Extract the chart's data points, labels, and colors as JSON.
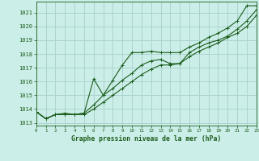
{
  "title": "Graphe pression niveau de la mer (hPa)",
  "background_color": "#cceee8",
  "grid_color": "#aad4ce",
  "line_color": "#1a5c1a",
  "xmin": 0,
  "xmax": 23,
  "ymin": 1012.8,
  "ymax": 1021.8,
  "yticks": [
    1013,
    1014,
    1015,
    1016,
    1017,
    1018,
    1019,
    1020,
    1021
  ],
  "xticks": [
    0,
    1,
    2,
    3,
    4,
    5,
    6,
    7,
    8,
    9,
    10,
    11,
    12,
    13,
    14,
    15,
    16,
    17,
    18,
    19,
    20,
    21,
    22,
    23
  ],
  "series1": [
    1013.8,
    1013.3,
    1013.6,
    1013.6,
    1013.6,
    1013.7,
    1016.2,
    1015.0,
    1016.1,
    1017.2,
    1018.1,
    1018.1,
    1018.2,
    1018.1,
    1018.1,
    1018.1,
    1018.5,
    1018.8,
    1019.2,
    1019.5,
    1019.9,
    1020.4,
    1021.5,
    1021.5
  ],
  "series2": [
    1013.8,
    1013.3,
    1013.6,
    1013.7,
    1013.6,
    1013.7,
    1014.3,
    1015.0,
    1015.5,
    1016.1,
    1016.6,
    1017.2,
    1017.5,
    1017.6,
    1017.3,
    1017.3,
    1018.1,
    1018.5,
    1018.8,
    1019.0,
    1019.3,
    1019.8,
    1020.4,
    1021.2
  ],
  "series3": [
    1013.8,
    1013.3,
    1013.6,
    1013.6,
    1013.6,
    1013.6,
    1014.0,
    1014.5,
    1015.0,
    1015.5,
    1016.0,
    1016.5,
    1016.9,
    1017.2,
    1017.2,
    1017.3,
    1017.8,
    1018.2,
    1018.5,
    1018.8,
    1019.2,
    1019.5,
    1020.0,
    1020.8
  ]
}
